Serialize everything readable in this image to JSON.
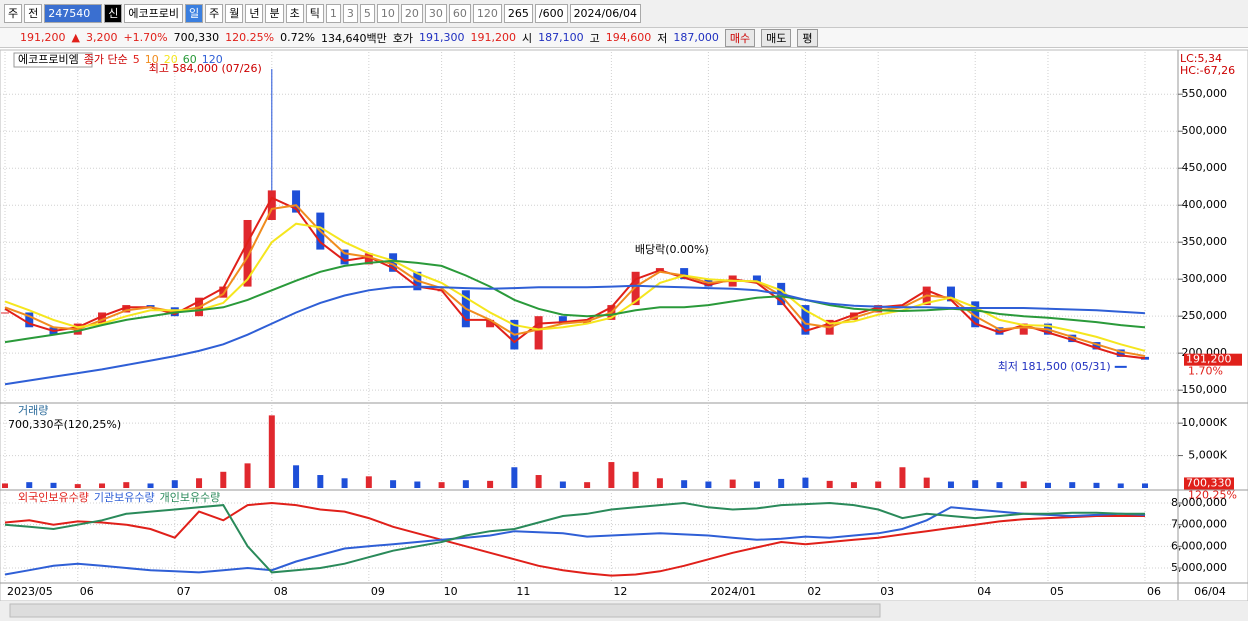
{
  "toolbar": {
    "items": [
      "주",
      "전",
      "247540",
      "신",
      "에코프로비",
      "일",
      "주",
      "월",
      "년",
      "분",
      "초",
      "틱",
      "1",
      "3",
      "5",
      "10",
      "20",
      "30",
      "60",
      "120",
      "265",
      "/600",
      "2024/06/04"
    ]
  },
  "quote": {
    "items": [
      "191,200",
      "▲",
      "3,200",
      "+1.70%",
      "700,330",
      "120.25%",
      "0.72%",
      "134,640백만",
      "호가",
      "191,300",
      "191,200",
      "시",
      "187,100",
      "고",
      "194,600",
      "저",
      "187,000"
    ],
    "buttons": [
      "매수",
      "매도",
      "평"
    ]
  },
  "cursor_date": "06/04",
  "chart_data": [
    {
      "type": "candlestick",
      "legend_prefix": "종가 단순",
      "corner_labels": [
        "LC:5,34",
        "HC:-67,26"
      ],
      "last_label": "191,200",
      "last_change": "1.70%",
      "grid": true,
      "annotations": [
        {
          "text": "최고 584,000 (07/26)",
          "value": 584000
        },
        {
          "text": "배당락(0.00%)"
        },
        {
          "text": "최저 181,500 (05/31)",
          "value": 181500
        }
      ],
      "categories": [
        "2023/05",
        null,
        null,
        "06",
        null,
        null,
        null,
        "07",
        null,
        null,
        null,
        "08",
        null,
        null,
        null,
        "09",
        null,
        null,
        "10",
        null,
        null,
        "11",
        null,
        null,
        null,
        "12",
        null,
        null,
        null,
        "2024/01",
        null,
        null,
        null,
        "02",
        null,
        null,
        "03",
        null,
        null,
        null,
        "04",
        null,
        null,
        "05",
        null,
        null,
        null,
        "06"
      ],
      "ylim": [
        134000,
        603000
      ],
      "yticks": [
        {
          "value": 150000,
          "label": "150,000"
        },
        {
          "value": 200000,
          "label": "200,000"
        },
        {
          "value": 250000,
          "label": "250,000"
        },
        {
          "value": 300000,
          "label": "300,000"
        },
        {
          "value": 350000,
          "label": "350,000"
        },
        {
          "value": 400000,
          "label": "400,000"
        },
        {
          "value": 450000,
          "label": "450,000"
        },
        {
          "value": 500000,
          "label": "500,000"
        },
        {
          "value": 550000,
          "label": "550,000"
        }
      ],
      "series": [
        {
          "name": "에코프로비엠",
          "color": "#e0282e",
          "down_color": "#1e4fd8",
          "values": [
            255000,
            235000,
            225000,
            240000,
            255000,
            265000,
            262000,
            250000,
            275000,
            290000,
            380000,
            420000,
            390000,
            340000,
            320000,
            335000,
            310000,
            285000,
            285000,
            235000,
            245000,
            205000,
            250000,
            240000,
            245000,
            265000,
            310000,
            315000,
            300000,
            290000,
            305000,
            295000,
            265000,
            225000,
            245000,
            255000,
            265000,
            265000,
            290000,
            270000,
            235000,
            225000,
            240000,
            225000,
            215000,
            205000,
            195000,
            191200
          ]
        },
        {
          "name": "5",
          "color": "#e0201a",
          "values": [
            260000,
            240000,
            230000,
            235000,
            250000,
            262000,
            262000,
            253000,
            270000,
            288000,
            350000,
            410000,
            395000,
            350000,
            325000,
            330000,
            315000,
            290000,
            285000,
            245000,
            245000,
            215000,
            240000,
            242000,
            245000,
            262000,
            300000,
            312000,
            302000,
            292000,
            300000,
            295000,
            270000,
            230000,
            240000,
            252000,
            262000,
            265000,
            285000,
            272000,
            240000,
            228000,
            238000,
            228000,
            218000,
            207000,
            197000,
            193000
          ]
        },
        {
          "name": "10",
          "color": "#f08c1e",
          "values": [
            262000,
            250000,
            235000,
            232000,
            245000,
            258000,
            262000,
            256000,
            262000,
            280000,
            330000,
            395000,
            400000,
            365000,
            335000,
            330000,
            320000,
            298000,
            288000,
            260000,
            245000,
            225000,
            232000,
            240000,
            243000,
            255000,
            290000,
            310000,
            305000,
            295000,
            298000,
            297000,
            278000,
            240000,
            235000,
            248000,
            258000,
            262000,
            278000,
            275000,
            250000,
            232000,
            235000,
            232000,
            222000,
            212000,
            202000,
            196000
          ]
        },
        {
          "name": "20",
          "color": "#f5e61e",
          "values": [
            270000,
            258000,
            245000,
            235000,
            240000,
            250000,
            258000,
            258000,
            258000,
            268000,
            300000,
            350000,
            375000,
            370000,
            350000,
            335000,
            325000,
            308000,
            295000,
            275000,
            255000,
            238000,
            232000,
            235000,
            240000,
            248000,
            270000,
            295000,
            305000,
            300000,
            298000,
            297000,
            285000,
            258000,
            240000,
            243000,
            252000,
            258000,
            268000,
            275000,
            262000,
            245000,
            238000,
            237000,
            230000,
            222000,
            212000,
            203000
          ]
        },
        {
          "name": "60",
          "color": "#2a9a3a",
          "values": [
            215000,
            220000,
            225000,
            230000,
            238000,
            245000,
            250000,
            255000,
            258000,
            262000,
            272000,
            285000,
            298000,
            310000,
            318000,
            322000,
            325000,
            322000,
            318000,
            305000,
            290000,
            272000,
            260000,
            252000,
            250000,
            252000,
            258000,
            262000,
            262000,
            265000,
            270000,
            275000,
            277000,
            272000,
            265000,
            260000,
            258000,
            257000,
            258000,
            260000,
            258000,
            253000,
            250000,
            248000,
            245000,
            242000,
            238000,
            235000
          ]
        },
        {
          "name": "120",
          "color": "#2f5fd6",
          "values": [
            158000,
            163000,
            168000,
            173000,
            178000,
            184000,
            190000,
            196000,
            203000,
            212000,
            225000,
            240000,
            255000,
            268000,
            278000,
            285000,
            289000,
            290000,
            289000,
            288000,
            287000,
            288000,
            289000,
            289000,
            289000,
            290000,
            291000,
            290000,
            289000,
            288000,
            287000,
            285000,
            280000,
            272000,
            267000,
            264000,
            263000,
            262000,
            262000,
            261000,
            261000,
            261000,
            261000,
            260000,
            259000,
            258000,
            256000,
            254000
          ]
        }
      ]
    },
    {
      "type": "bar",
      "title": "거래량",
      "subtitle": "700,330주(120,25%)",
      "last_label": "700,330",
      "last_change": "120.25%",
      "grid": true,
      "ylim": [
        0,
        12800
      ],
      "yticks": [
        {
          "value": 5000,
          "label": "5,000K"
        },
        {
          "value": 10000,
          "label": "10,000K"
        }
      ],
      "values": [
        700,
        900,
        800,
        600,
        700,
        900,
        700,
        1200,
        1500,
        2500,
        3800,
        11200,
        3500,
        2000,
        1500,
        1800,
        1200,
        1000,
        900,
        1200,
        1100,
        3200,
        2000,
        1000,
        900,
        4000,
        2500,
        1500,
        1200,
        1000,
        1300,
        1000,
        1400,
        1600,
        1100,
        900,
        1000,
        3200,
        1600,
        1000,
        1200,
        900,
        1000,
        800,
        900,
        800,
        700,
        700
      ]
    },
    {
      "type": "line",
      "grid": true,
      "ylim": [
        4355000,
        8460000
      ],
      "yticks": [
        {
          "value": 5000000,
          "label": "5,000,000"
        },
        {
          "value": 6000000,
          "label": "6,000,000"
        },
        {
          "value": 7000000,
          "label": "7,000,000"
        },
        {
          "value": 8000000,
          "label": "8,000,000"
        }
      ],
      "series": [
        {
          "name": "외국인보유수량",
          "color": "#e0201a",
          "values": [
            7100000,
            7200000,
            7000000,
            7150000,
            7100000,
            7000000,
            6800000,
            6400000,
            7600000,
            7200000,
            7900000,
            8000000,
            7900000,
            7700000,
            7600000,
            7300000,
            6900000,
            6600000,
            6300000,
            6000000,
            5700000,
            5400000,
            5100000,
            4900000,
            4750000,
            4650000,
            4700000,
            4850000,
            5100000,
            5400000,
            5700000,
            5950000,
            6200000,
            6100000,
            6200000,
            6300000,
            6400000,
            6550000,
            6700000,
            6850000,
            7000000,
            7150000,
            7250000,
            7300000,
            7350000,
            7400000,
            7400000,
            7400000
          ]
        },
        {
          "name": "기관보유수량",
          "color": "#2f5fd6",
          "values": [
            4700000,
            4900000,
            5100000,
            5200000,
            5100000,
            5000000,
            4900000,
            4850000,
            4800000,
            4900000,
            5000000,
            4900000,
            5300000,
            5600000,
            5900000,
            6000000,
            6100000,
            6200000,
            6300000,
            6400000,
            6500000,
            6700000,
            6650000,
            6600000,
            6450000,
            6500000,
            6550000,
            6600000,
            6550000,
            6500000,
            6400000,
            6300000,
            6350000,
            6450000,
            6400000,
            6500000,
            6600000,
            6800000,
            7200000,
            7800000,
            7700000,
            7600000,
            7500000,
            7450000,
            7400000,
            7450000,
            7500000,
            7450000
          ]
        },
        {
          "name": "개인보유수량",
          "color": "#2a8a5a",
          "values": [
            7000000,
            6900000,
            6800000,
            7000000,
            7200000,
            7500000,
            7600000,
            7700000,
            7800000,
            7900000,
            6000000,
            4800000,
            4900000,
            5000000,
            5200000,
            5500000,
            5800000,
            6000000,
            6200000,
            6500000,
            6700000,
            6800000,
            7100000,
            7400000,
            7500000,
            7700000,
            7800000,
            7900000,
            8000000,
            7800000,
            7700000,
            7750000,
            7900000,
            7950000,
            8000000,
            7900000,
            7700000,
            7300000,
            7500000,
            7400000,
            7300000,
            7400000,
            7500000,
            7500000,
            7550000,
            7550000,
            7500000,
            7500000
          ]
        }
      ]
    }
  ]
}
